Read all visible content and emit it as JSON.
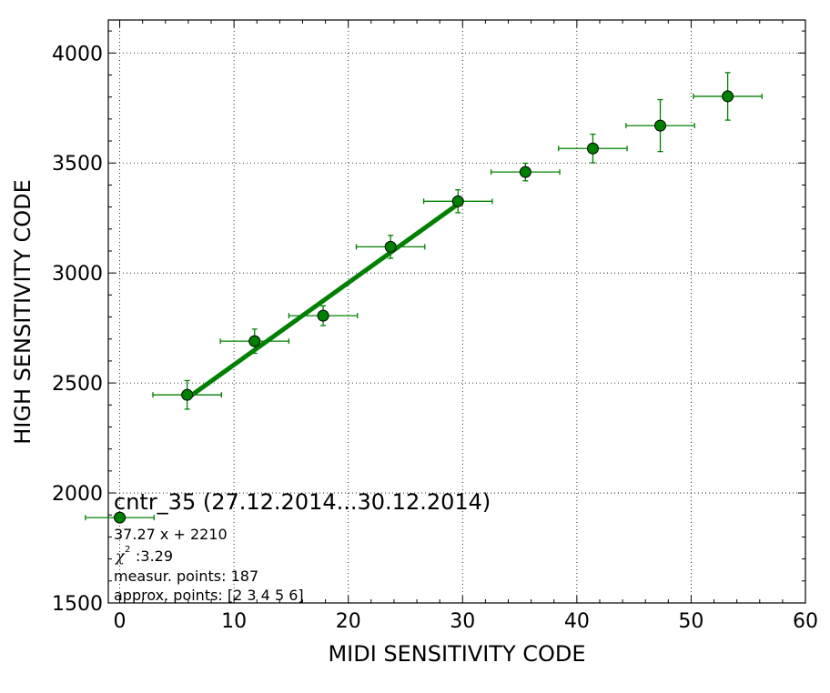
{
  "chart_data": {
    "type": "scatter",
    "xlabel": "MIDI SENSITIVITY CODE",
    "ylabel": "HIGH SENSITIVITY CODE",
    "xlim": [
      -1,
      60
    ],
    "ylim": [
      1500,
      4150
    ],
    "xticks": [
      0,
      10,
      20,
      30,
      40,
      50,
      60
    ],
    "yticks": [
      1500,
      2000,
      2500,
      3000,
      3500,
      4000
    ],
    "grid": true,
    "marker_color": "#008000",
    "points": [
      {
        "x": 5.9,
        "y": 2446,
        "xerr": 3.0,
        "yerr": 65
      },
      {
        "x": 11.8,
        "y": 2690,
        "xerr": 3.0,
        "yerr": 55
      },
      {
        "x": 17.8,
        "y": 2806,
        "xerr": 3.0,
        "yerr": 45
      },
      {
        "x": 23.7,
        "y": 3119,
        "xerr": 3.0,
        "yerr": 52
      },
      {
        "x": 29.6,
        "y": 3326,
        "xerr": 3.0,
        "yerr": 52
      },
      {
        "x": 35.5,
        "y": 3459,
        "xerr": 3.0,
        "yerr": 40
      },
      {
        "x": 41.4,
        "y": 3566,
        "xerr": 3.0,
        "yerr": 65
      },
      {
        "x": 47.3,
        "y": 3670,
        "xerr": 3.0,
        "yerr": 118
      },
      {
        "x": 53.2,
        "y": 3803,
        "xerr": 3.0,
        "yerr": 108
      }
    ],
    "fit": {
      "slope": 37.27,
      "intercept": 2210,
      "x_range": [
        5.9,
        29.6
      ],
      "color": "#008000"
    },
    "legend": {
      "marker_x": 0,
      "marker_y": 1888,
      "xerr": 3.0
    }
  },
  "annotations": {
    "title": "cntr_35 (27.12.2014...30.12.2014)",
    "formula": "37.27 x + 2210",
    "chi_symbol": "χ",
    "chi_sup": "2",
    "chi_value": ":3.29",
    "measur_points": "measur. points: 187",
    "approx_points": "approx. points: [2 3 4 5 6]"
  }
}
